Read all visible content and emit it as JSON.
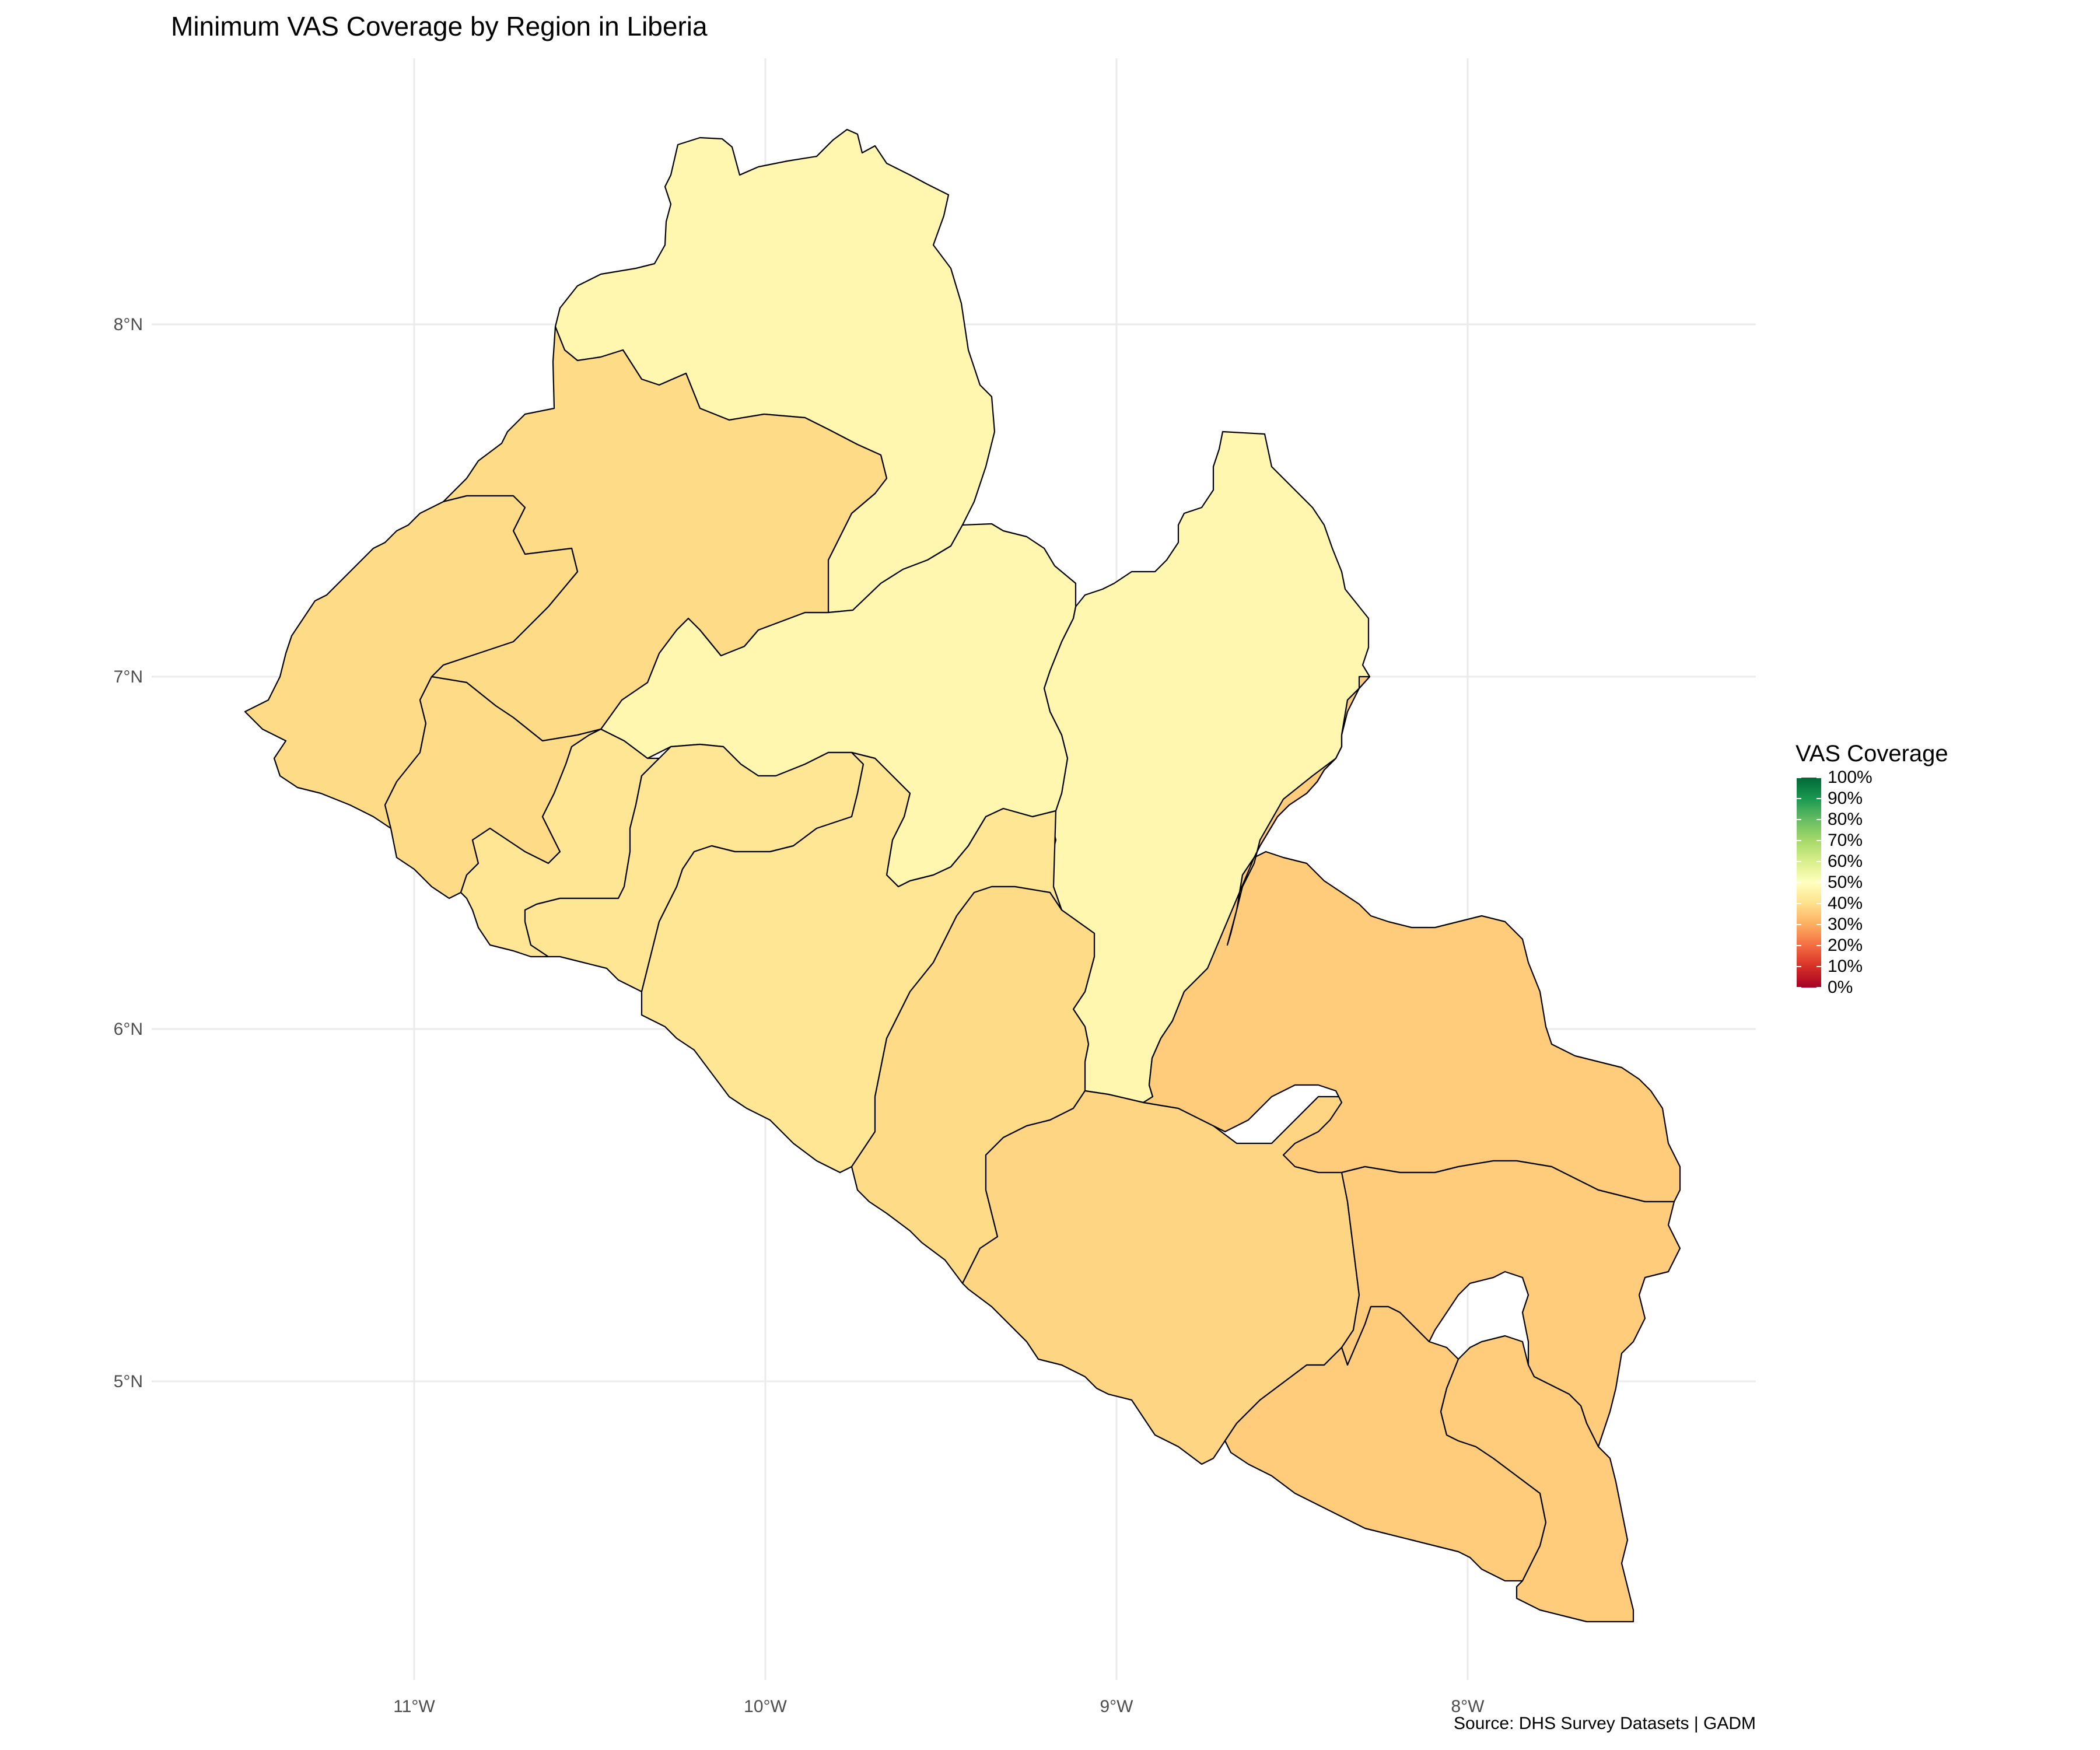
{
  "title": "Minimum VAS Coverage by Region in Liberia",
  "caption": "Source: DHS Survey Datasets | GADM",
  "axes": {
    "x_ticks": [
      {
        "lon": -11,
        "label": "11°W"
      },
      {
        "lon": -10,
        "label": "10°W"
      },
      {
        "lon": -9,
        "label": "9°W"
      },
      {
        "lon": -8,
        "label": "8°W"
      }
    ],
    "y_ticks": [
      {
        "lat": 8,
        "label": "8°N"
      },
      {
        "lat": 7,
        "label": "7°N"
      },
      {
        "lat": 6,
        "label": "6°N"
      },
      {
        "lat": 5,
        "label": "5°N"
      }
    ]
  },
  "legend": {
    "title": "VAS Coverage",
    "labels": [
      "100%",
      "90%",
      "80%",
      "70%",
      "60%",
      "50%",
      "40%",
      "30%",
      "20%",
      "10%",
      "0%"
    ],
    "scale_colors": [
      "#a50026",
      "#d73027",
      "#f46d43",
      "#fdae61",
      "#fee08b",
      "#ffffbf",
      "#d9ef8b",
      "#a6d96a",
      "#66bd63",
      "#1a9850",
      "#006837"
    ]
  },
  "map_data": {
    "regions": [
      {
        "id": "lofa",
        "coverage": 47
      },
      {
        "id": "nimba",
        "coverage": 47
      },
      {
        "id": "bong",
        "coverage": 47
      },
      {
        "id": "gbarpolu",
        "coverage": 39
      },
      {
        "id": "grand-cape-mount",
        "coverage": 39
      },
      {
        "id": "bomi",
        "coverage": 39
      },
      {
        "id": "montserrado",
        "coverage": 42
      },
      {
        "id": "margibi",
        "coverage": 42
      },
      {
        "id": "grand-bassa",
        "coverage": 42
      },
      {
        "id": "rivercess",
        "coverage": 39
      },
      {
        "id": "sinoe",
        "coverage": 38
      },
      {
        "id": "grand-gedeh",
        "coverage": 36
      },
      {
        "id": "river-gee",
        "coverage": 36
      },
      {
        "id": "grand-kru",
        "coverage": 36
      },
      {
        "id": "maryland",
        "coverage": 36
      }
    ]
  }
}
